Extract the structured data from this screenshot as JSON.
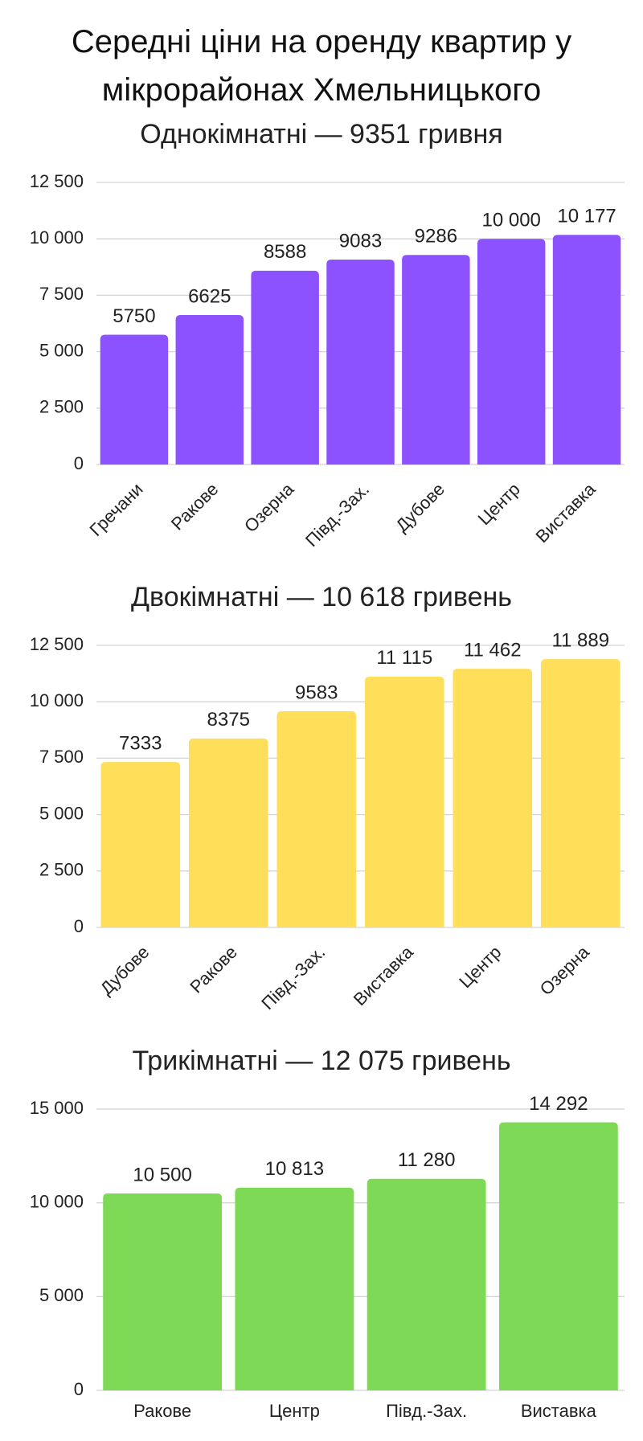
{
  "title": "Середні ціни на оренду квартир у мікрорайонах Хмельницького",
  "chart_data": [
    {
      "type": "bar",
      "title": "Однокімнатні — 9351 гривня",
      "categories": [
        "Гречани",
        "Ракове",
        "Озерна",
        "Півд.-Зах.",
        "Дубове",
        "Центр",
        "Виставка"
      ],
      "values": [
        5750,
        6625,
        8588,
        9083,
        9286,
        10000,
        10177
      ],
      "value_labels": [
        "5750",
        "6625",
        "8588",
        "9083",
        "9286",
        "10 000",
        "10 177"
      ],
      "color": "#8c52ff",
      "ylim": [
        0,
        12500
      ],
      "yticks": [
        0,
        {
          "value": 2500,
          "label": "2 500"
        },
        {
          "value": 5000,
          "label": "5 000"
        },
        {
          "value": 7500,
          "label": "7 500"
        },
        {
          "value": 10000,
          "label": "10 000"
        },
        {
          "value": 12500,
          "label": "12 500"
        }
      ],
      "grid": true,
      "xtick_rotation": -45
    },
    {
      "type": "bar",
      "title": "Двокімнатні — 10 618 гривень",
      "categories": [
        "Дубове",
        "Ракове",
        "Півд.-Зах.",
        "Виставка",
        "Центр",
        "Озерна"
      ],
      "values": [
        7333,
        8375,
        9583,
        11115,
        11462,
        11889
      ],
      "value_labels": [
        "7333",
        "8375",
        "9583",
        "11 115",
        "11 462",
        "11 889"
      ],
      "color": "#ffde59",
      "ylim": [
        0,
        12500
      ],
      "yticks": [
        0,
        {
          "value": 2500,
          "label": "2 500"
        },
        {
          "value": 5000,
          "label": "5 000"
        },
        {
          "value": 7500,
          "label": "7 500"
        },
        {
          "value": 10000,
          "label": "10 000"
        },
        {
          "value": 12500,
          "label": "12 500"
        }
      ],
      "grid": true,
      "xtick_rotation": -45
    },
    {
      "type": "bar",
      "title": "Трикімнатні — 12 075 гривень",
      "categories": [
        "Ракове",
        "Центр",
        "Півд.-Зах.",
        "Виставка"
      ],
      "values": [
        10500,
        10813,
        11280,
        14292
      ],
      "value_labels": [
        "10 500",
        "10 813",
        "11 280",
        "14 292"
      ],
      "color": "#7ed957",
      "ylim": [
        0,
        15000
      ],
      "yticks": [
        0,
        {
          "value": 5000,
          "label": "5 000"
        },
        {
          "value": 10000,
          "label": "10 000"
        },
        {
          "value": 15000,
          "label": "15 000"
        }
      ],
      "grid": true,
      "xtick_rotation": 0
    }
  ]
}
